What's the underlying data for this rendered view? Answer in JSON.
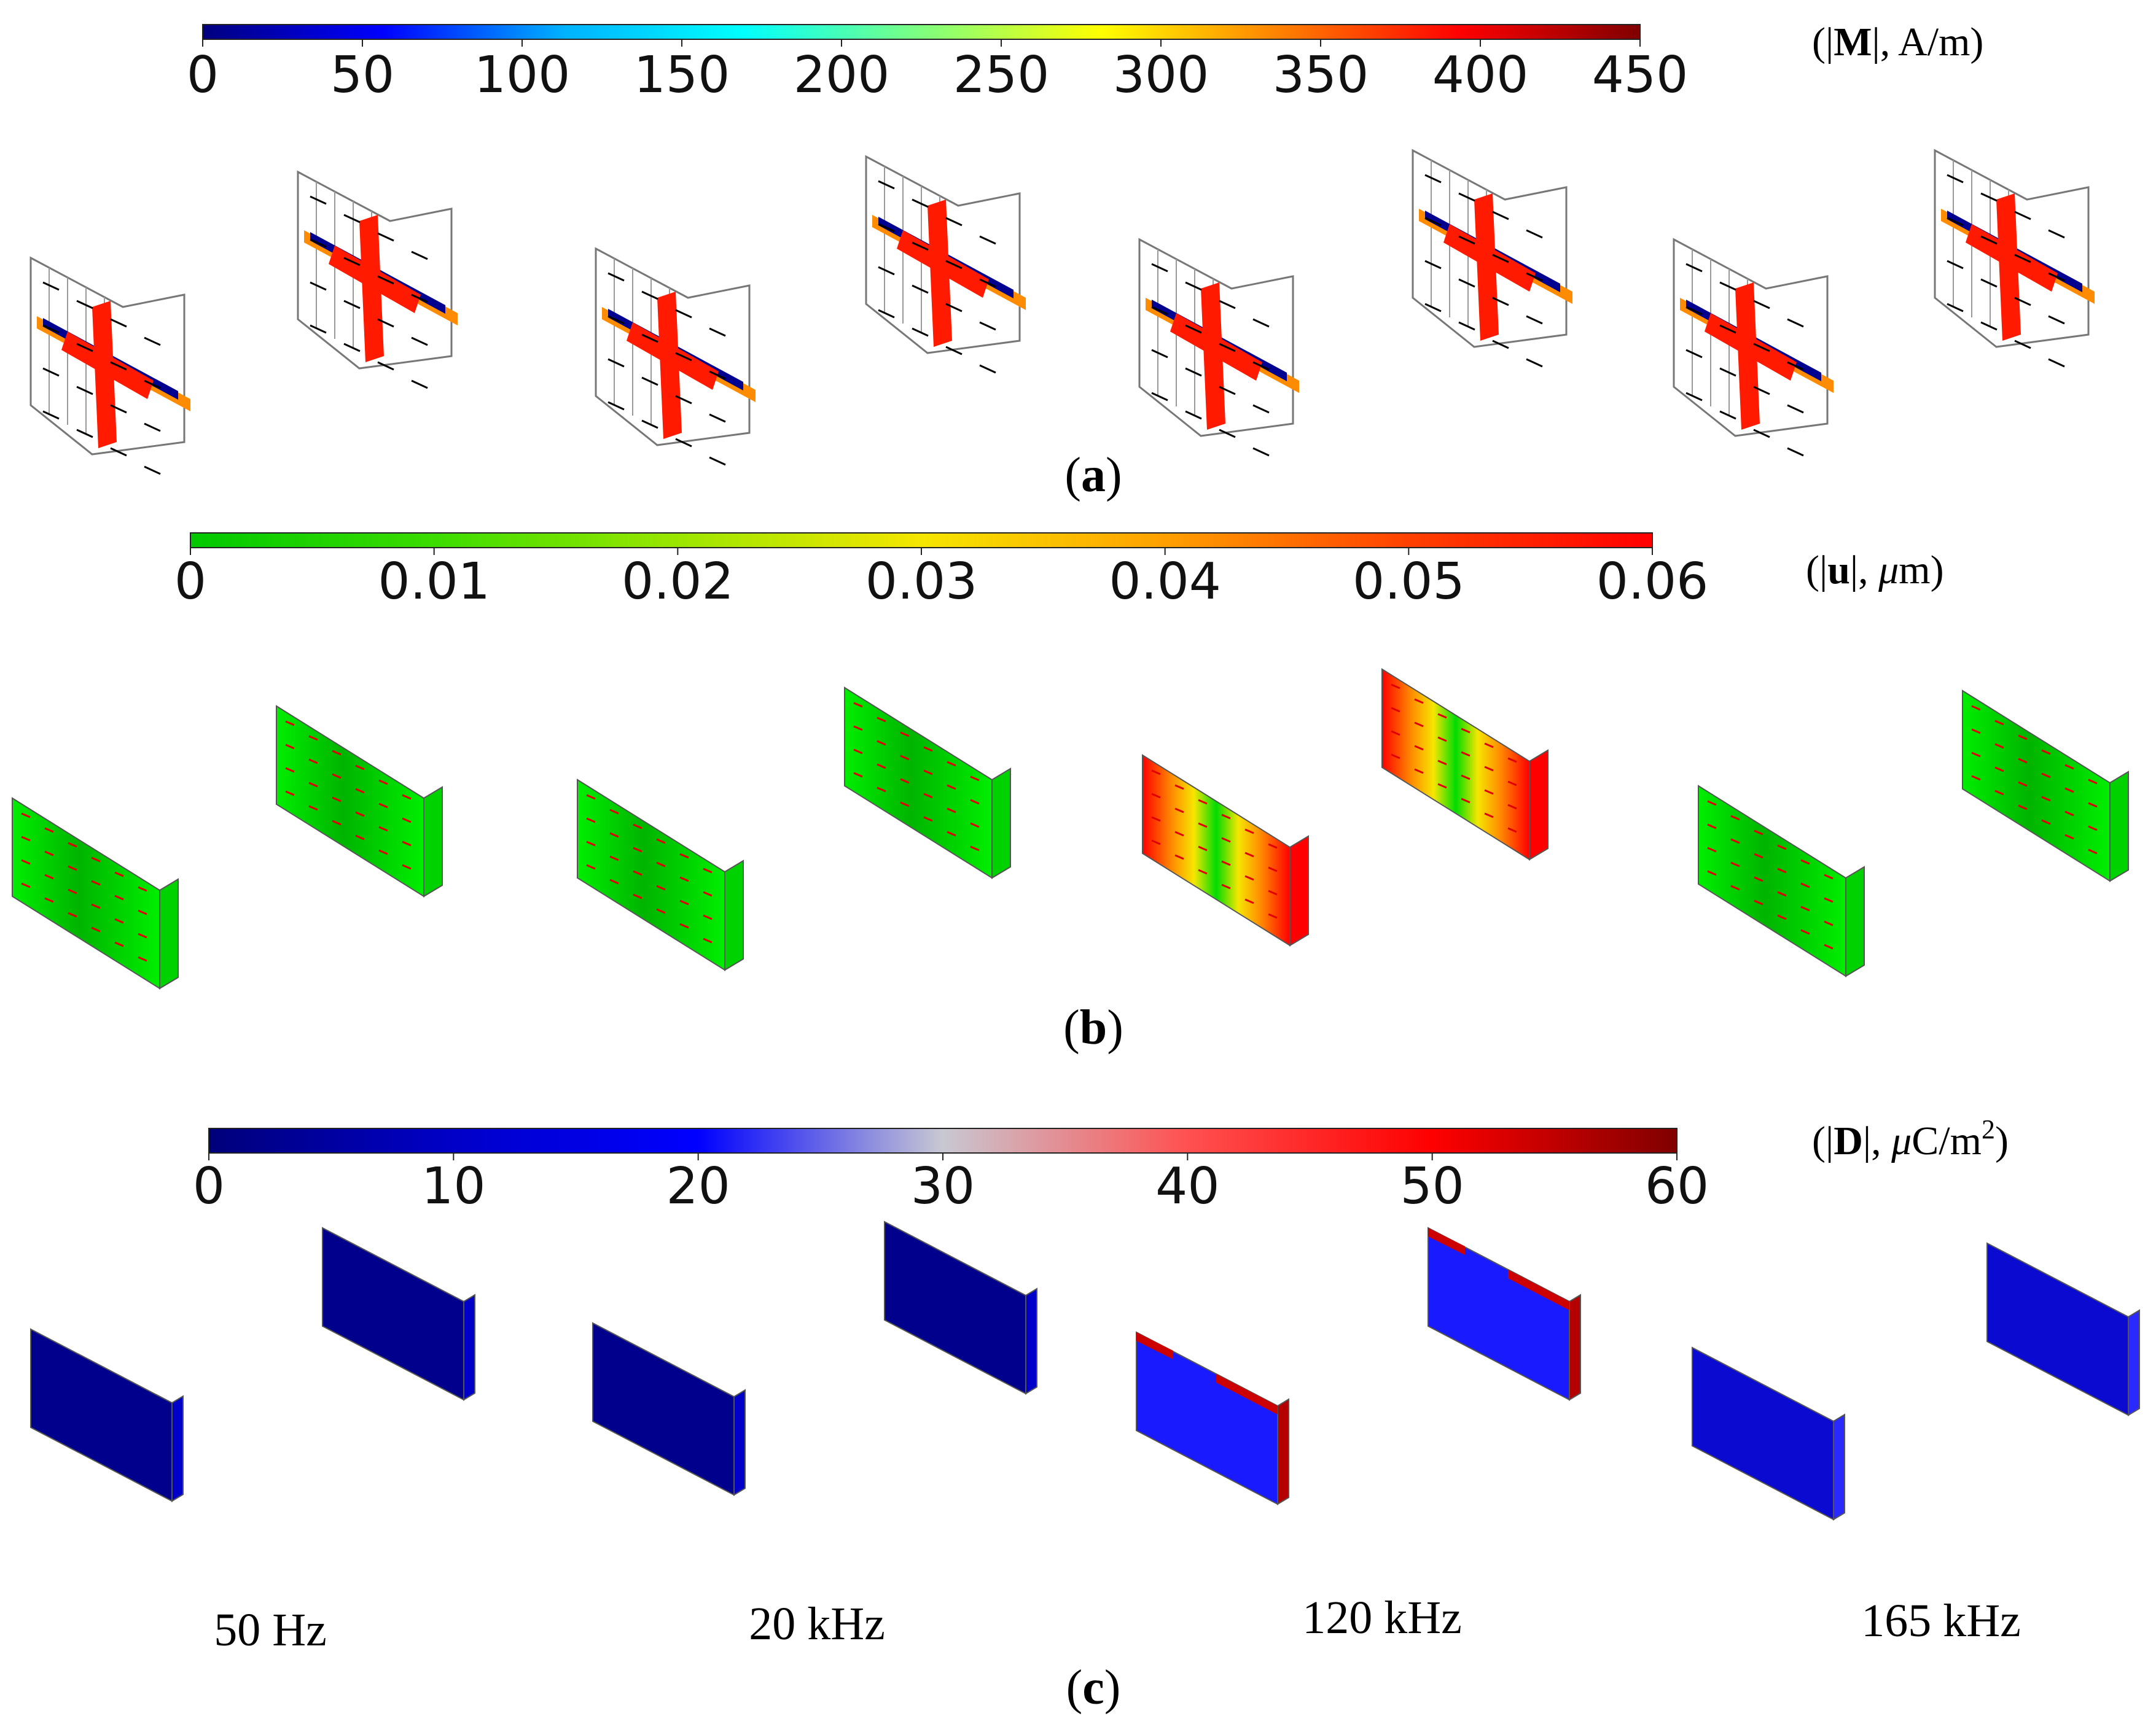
{
  "figure": {
    "panels": [
      {
        "id": "a",
        "label_open": "(",
        "label_letter": "a",
        "label_close": ")",
        "unit_open": "(|",
        "unit_symbol": "M",
        "unit_rest": "|, A/m)",
        "colorbar": {
          "ticks": [
            "0",
            "50",
            "100",
            "150",
            "200",
            "250",
            "300",
            "350",
            "400",
            "450"
          ],
          "colors": [
            "#000080",
            "#0000ff",
            "#00b0ff",
            "#00ffff",
            "#7fff7f",
            "#ffff00",
            "#ff8000",
            "#ff0000",
            "#800000"
          ]
        }
      },
      {
        "id": "b",
        "label_open": "(",
        "label_letter": "b",
        "label_close": ")",
        "unit_open": "(|",
        "unit_symbol": "u",
        "unit_rest": "|,  ",
        "unit_mu": "μ",
        "unit_tail": "m)",
        "colorbar": {
          "ticks": [
            "0",
            "0.01",
            "0.02",
            "0.03",
            "0.04",
            "0.05",
            "0.06"
          ],
          "colors": [
            "#00c800",
            "#3cdc00",
            "#9be600",
            "#f5e600",
            "#ffa000",
            "#ff4000",
            "#ff0000"
          ]
        }
      },
      {
        "id": "c",
        "label_open": "(",
        "label_letter": "c",
        "label_close": ")",
        "unit_open": "(|",
        "unit_symbol": "D",
        "unit_rest": "|,  ",
        "unit_mu": "μ",
        "unit_tail": "C/m",
        "unit_sup": "2",
        "unit_end": ")",
        "colorbar": {
          "ticks": [
            "0",
            "10",
            "20",
            "30",
            "40",
            "50",
            "60"
          ],
          "colors": [
            "#00007a",
            "#0000c8",
            "#0000ff",
            "#c8c8d2",
            "#ff5050",
            "#ff0000",
            "#800000"
          ]
        }
      }
    ],
    "frequencies": [
      "50 Hz",
      "20 kHz",
      "120 kHz",
      "165 kHz"
    ]
  }
}
